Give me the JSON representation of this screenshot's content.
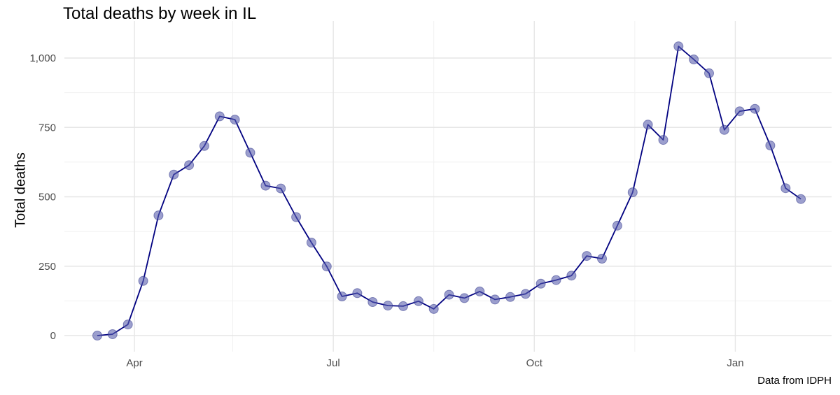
{
  "chart_data": {
    "type": "line",
    "title": "Total deaths by week in IL",
    "xlabel": "",
    "ylabel": "Total deaths",
    "caption": "Data from IDPH",
    "x_ticks": [
      "Apr",
      "Jul",
      "Oct",
      "Jan"
    ],
    "y_ticks": [
      "0",
      "250",
      "500",
      "750",
      "1,000"
    ],
    "ylim": [
      0,
      1050
    ],
    "grid": true,
    "colors": {
      "line": "#000080",
      "point": "#5a5fae"
    },
    "series": [
      {
        "x": [
          "2020-03-15",
          "2020-03-22",
          "2020-03-29",
          "2020-04-05",
          "2020-04-12",
          "2020-04-19",
          "2020-04-26",
          "2020-05-03",
          "2020-05-10",
          "2020-05-17",
          "2020-05-24",
          "2020-05-31",
          "2020-06-07",
          "2020-06-14",
          "2020-06-21",
          "2020-06-28",
          "2020-07-05",
          "2020-07-12",
          "2020-07-19",
          "2020-07-26",
          "2020-08-02",
          "2020-08-09",
          "2020-08-16",
          "2020-08-23",
          "2020-08-30",
          "2020-09-06",
          "2020-09-13",
          "2020-09-20",
          "2020-09-27",
          "2020-10-04",
          "2020-10-11",
          "2020-10-18",
          "2020-10-25",
          "2020-11-01",
          "2020-11-08",
          "2020-11-15",
          "2020-11-22",
          "2020-11-29",
          "2020-12-06",
          "2020-12-13",
          "2020-12-20",
          "2020-12-27",
          "2021-01-03",
          "2021-01-10",
          "2021-01-17",
          "2021-01-24",
          "2021-01-31"
        ],
        "values": [
          0,
          5,
          40,
          197,
          433,
          580,
          614,
          683,
          790,
          778,
          659,
          540,
          530,
          427,
          335,
          249,
          141,
          153,
          121,
          108,
          106,
          124,
          96,
          147,
          135,
          159,
          130,
          139,
          150,
          187,
          200,
          216,
          287,
          277,
          396,
          516,
          760,
          705,
          1042,
          995,
          945,
          741,
          808,
          817,
          685,
          531,
          492
        ]
      }
    ]
  }
}
